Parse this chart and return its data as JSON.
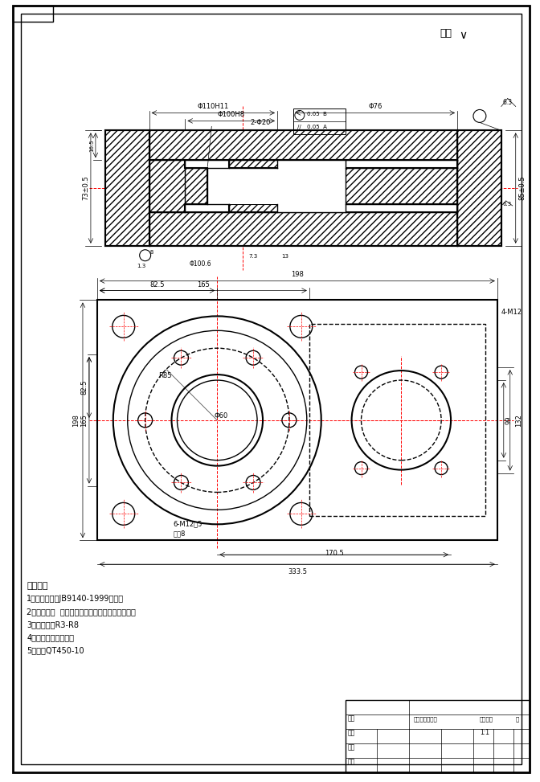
{
  "bg_color": "#ffffff",
  "line_color": "#000000",
  "title_text": "其余✓",
  "tech_req_title": "技术要求",
  "tech_req": [
    "1：铸件应符合JB9140-1999的规定",
    "2：铸件表面  应光洁，不得有砂型，砂芯，浇冒口",
    "3：未注圆角R3-R8",
    "4：铸件需经回火处理",
    "5：材料QT450-10"
  ],
  "figsize": [
    6.72,
    9.73
  ],
  "dpi": 100
}
